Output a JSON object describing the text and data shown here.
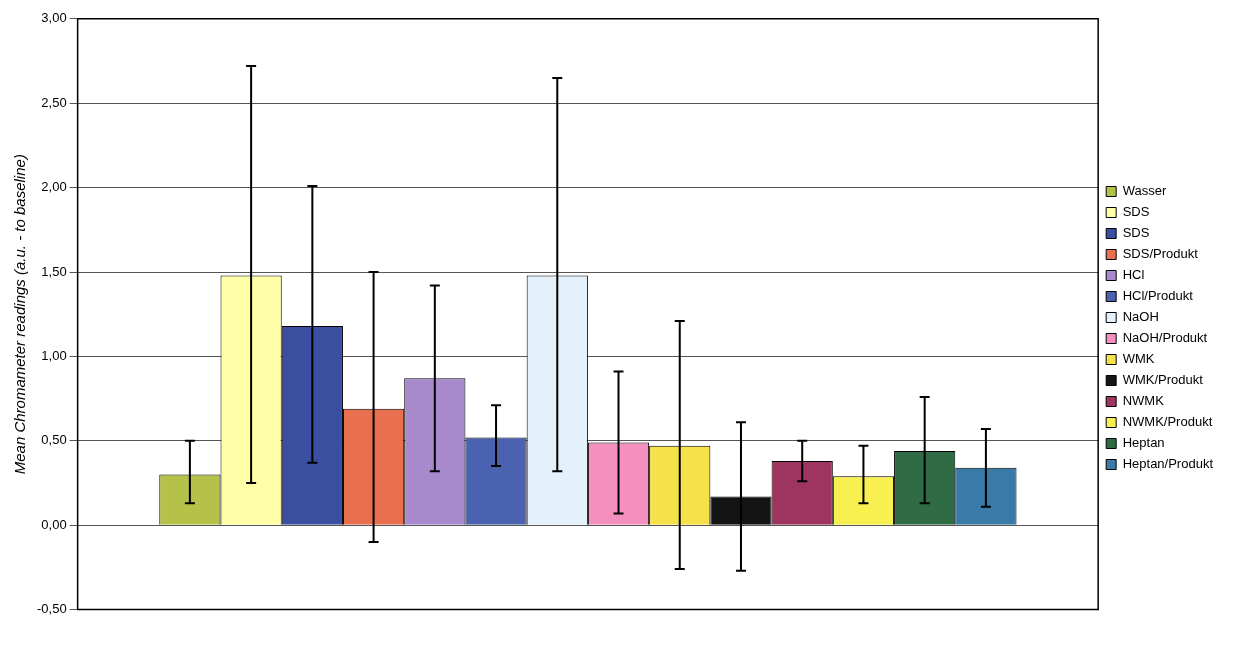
{
  "chart_data": {
    "type": "bar",
    "ylabel": "Mean Chromameter readings (a.u. - to baseline)",
    "categories": [
      null
    ],
    "series": [
      {
        "name": "Wasser",
        "color": "#b5c24a",
        "values": [
          0.3
        ],
        "errors": [
          [
            0.13,
            0.5
          ]
        ]
      },
      {
        "name": "SDS",
        "color": "#ffffa8",
        "values": [
          1.48
        ],
        "errors": [
          [
            0.25,
            2.72
          ]
        ]
      },
      {
        "name": "SDS",
        "color": "#3a4fa0",
        "values": [
          1.18
        ],
        "errors": [
          [
            0.37,
            2.01
          ]
        ]
      },
      {
        "name": "SDS/Produkt",
        "color": "#e8704f",
        "values": [
          0.69
        ],
        "errors": [
          [
            -0.1,
            1.5
          ]
        ]
      },
      {
        "name": "HCl",
        "color": "#a88acc",
        "values": [
          0.87
        ],
        "errors": [
          [
            0.32,
            1.42
          ]
        ]
      },
      {
        "name": "HCl/Produkt",
        "color": "#4a62b0",
        "values": [
          0.52
        ],
        "errors": [
          [
            0.35,
            0.71
          ]
        ]
      },
      {
        "name": "NaOH",
        "color": "#e4f0fa",
        "values": [
          1.48
        ],
        "errors": [
          [
            0.32,
            2.65
          ]
        ]
      },
      {
        "name": "NaOH/Produkt",
        "color": "#f58fbd",
        "values": [
          0.49
        ],
        "errors": [
          [
            0.07,
            0.91
          ]
        ]
      },
      {
        "name": "WMK",
        "color": "#f5e14a",
        "values": [
          0.47
        ],
        "errors": [
          [
            -0.26,
            1.21
          ]
        ]
      },
      {
        "name": "WMK/Produkt",
        "color": "#141414",
        "values": [
          0.17
        ],
        "errors": [
          [
            -0.27,
            0.61
          ]
        ]
      },
      {
        "name": "NWMK",
        "color": "#9e3560",
        "values": [
          0.38
        ],
        "errors": [
          [
            0.26,
            0.5
          ]
        ]
      },
      {
        "name": "NWMK/Produkt",
        "color": "#f8f050",
        "values": [
          0.29
        ],
        "errors": [
          [
            0.13,
            0.47
          ]
        ]
      },
      {
        "name": "Heptan",
        "color": "#2f6b45",
        "values": [
          0.44
        ],
        "errors": [
          [
            0.13,
            0.76
          ]
        ]
      },
      {
        "name": "Heptan/Produkt",
        "color": "#3a7aa8",
        "values": [
          0.34
        ],
        "errors": [
          [
            0.11,
            0.57
          ]
        ]
      }
    ],
    "ylim": [
      -0.5,
      3
    ],
    "yticks": [
      {
        "value": -0.5,
        "label": "-0,50"
      },
      {
        "value": 0,
        "label": "0,00"
      },
      {
        "value": 0.5,
        "label": "0,50"
      },
      {
        "value": 1,
        "label": "1,00"
      },
      {
        "value": 1.5,
        "label": "1,50"
      },
      {
        "value": 2,
        "label": "2,00"
      },
      {
        "value": 2.5,
        "label": "2,50"
      },
      {
        "value": 3,
        "label": "3,00"
      }
    ],
    "grid": "y",
    "legend": "right"
  }
}
